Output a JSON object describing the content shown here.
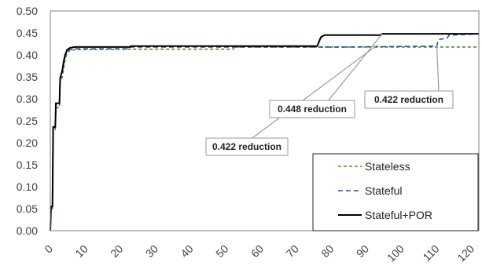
{
  "chart_data": {
    "type": "line",
    "title": "",
    "xlabel": "",
    "ylabel": "",
    "xlim": [
      0,
      120
    ],
    "ylim": [
      0,
      0.5
    ],
    "x_ticks": [
      "0",
      "10",
      "20",
      "30",
      "40",
      "50",
      "60",
      "70",
      "80",
      "90",
      "100",
      "110",
      "120"
    ],
    "y_ticks": [
      "0.00",
      "0.05",
      "0.10",
      "0.15",
      "0.20",
      "0.25",
      "0.30",
      "0.35",
      "0.40",
      "0.45",
      "0.50"
    ],
    "grid": false,
    "legend_position": "bottom-right",
    "series": [
      {
        "name": "Stateless",
        "color": "#4f8a2f",
        "dash": "dashed",
        "points": [
          [
            0,
            0
          ],
          [
            0.2,
            0.05
          ],
          [
            0.6,
            0.05
          ],
          [
            0.8,
            0.23
          ],
          [
            1.4,
            0.23
          ],
          [
            1.6,
            0.28
          ],
          [
            2.6,
            0.28
          ],
          [
            2.8,
            0.34
          ],
          [
            3.4,
            0.35
          ],
          [
            3.8,
            0.37
          ],
          [
            4.2,
            0.39
          ],
          [
            4.8,
            0.405
          ],
          [
            5.6,
            0.41
          ],
          [
            7,
            0.412
          ],
          [
            20,
            0.413
          ],
          [
            52,
            0.413
          ],
          [
            52.5,
            0.418
          ],
          [
            75,
            0.418
          ],
          [
            122,
            0.418
          ]
        ]
      },
      {
        "name": "Stateful",
        "color": "#2e4e8c",
        "dash": "dashed",
        "points": [
          [
            0,
            0
          ],
          [
            0.2,
            0.055
          ],
          [
            0.6,
            0.055
          ],
          [
            0.8,
            0.235
          ],
          [
            1.4,
            0.235
          ],
          [
            1.6,
            0.29
          ],
          [
            2.6,
            0.29
          ],
          [
            2.8,
            0.345
          ],
          [
            3.4,
            0.36
          ],
          [
            3.8,
            0.38
          ],
          [
            4.2,
            0.395
          ],
          [
            4.8,
            0.408
          ],
          [
            5.6,
            0.412
          ],
          [
            7,
            0.414
          ],
          [
            22.5,
            0.414
          ],
          [
            23,
            0.418
          ],
          [
            85,
            0.418
          ],
          [
            110,
            0.42
          ],
          [
            110.5,
            0.435
          ],
          [
            113,
            0.438
          ],
          [
            113.5,
            0.445
          ],
          [
            122,
            0.448
          ]
        ]
      },
      {
        "name": "Stateful+POR",
        "color": "#000000",
        "dash": "solid",
        "points": [
          [
            0,
            0
          ],
          [
            0.2,
            0.055
          ],
          [
            0.6,
            0.055
          ],
          [
            0.8,
            0.236
          ],
          [
            1.4,
            0.236
          ],
          [
            1.6,
            0.29
          ],
          [
            2.6,
            0.29
          ],
          [
            2.8,
            0.347
          ],
          [
            3.4,
            0.365
          ],
          [
            3.8,
            0.385
          ],
          [
            4.2,
            0.4
          ],
          [
            4.8,
            0.412
          ],
          [
            5.6,
            0.416
          ],
          [
            7,
            0.418
          ],
          [
            22.5,
            0.418
          ],
          [
            23,
            0.42
          ],
          [
            76,
            0.42
          ],
          [
            76.5,
            0.43
          ],
          [
            77,
            0.44
          ],
          [
            78,
            0.445
          ],
          [
            94,
            0.445
          ],
          [
            94.5,
            0.448
          ],
          [
            122,
            0.448
          ]
        ]
      }
    ],
    "annotations": [
      {
        "text": "0.422 reduction",
        "x": 93,
        "y": 0.422
      },
      {
        "text": "0.448 reduction",
        "x": 94.5,
        "y": 0.448
      },
      {
        "text": "0.422 reduction",
        "x": 110,
        "y": 0.422
      }
    ]
  }
}
